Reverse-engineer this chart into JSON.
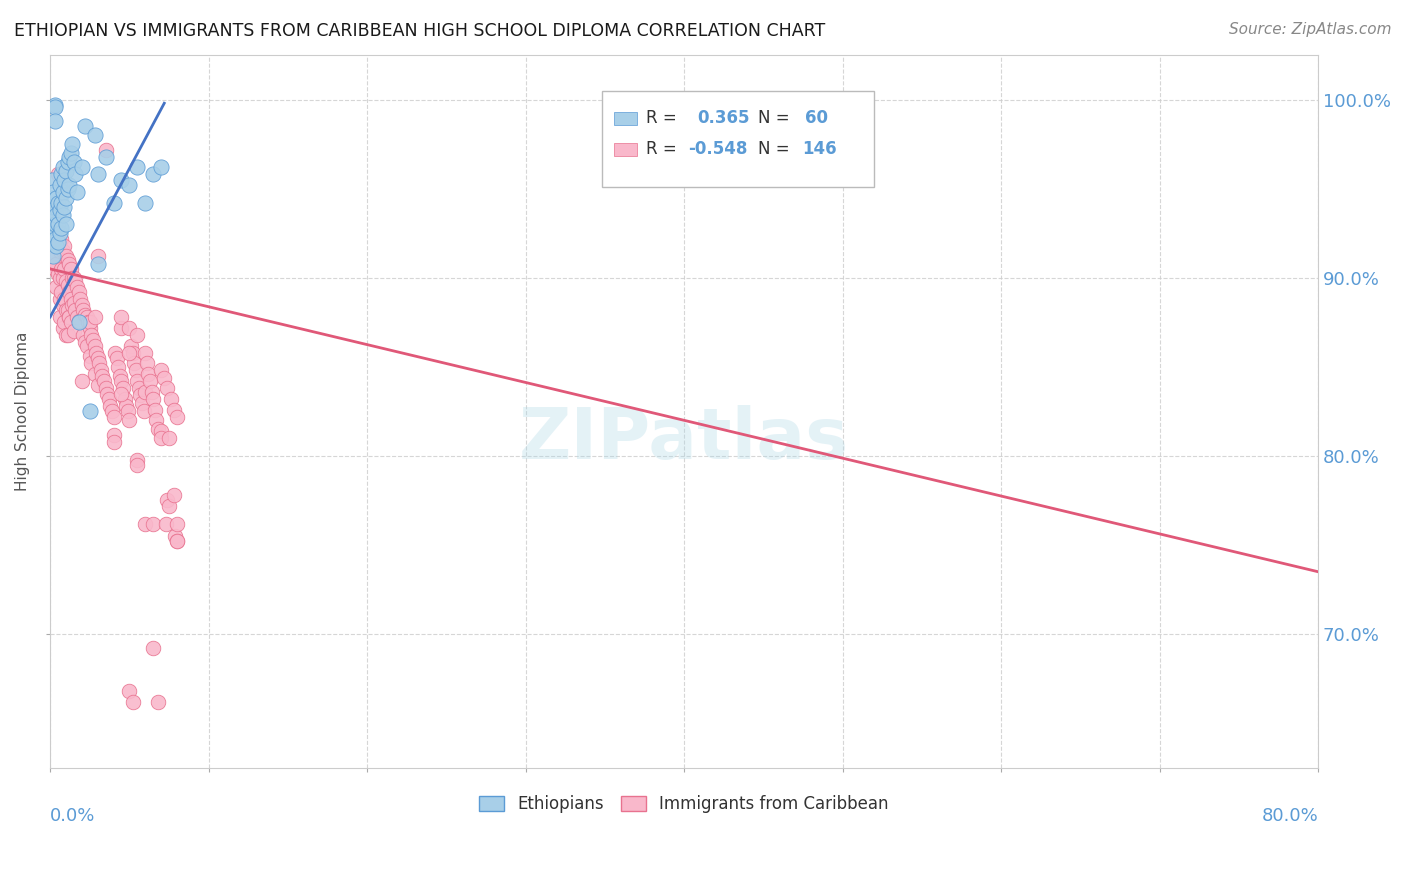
{
  "title": "ETHIOPIAN VS IMMIGRANTS FROM CARIBBEAN HIGH SCHOOL DIPLOMA CORRELATION CHART",
  "source": "Source: ZipAtlas.com",
  "ylabel": "High School Diploma",
  "right_ytick_labels": [
    "100.0%",
    "90.0%",
    "80.0%",
    "70.0%"
  ],
  "right_ytick_values": [
    1.0,
    0.9,
    0.8,
    0.7
  ],
  "blue_color": "#a8cfe8",
  "pink_color": "#f9b8cb",
  "blue_edge_color": "#5b9bd5",
  "pink_edge_color": "#e8728f",
  "blue_line_color": "#4472c4",
  "pink_line_color": "#e05878",
  "title_color": "#1a1a1a",
  "axis_label_color": "#5b9bd5",
  "grid_color": "#cccccc",
  "background_color": "#ffffff",
  "xlim": [
    0.0,
    0.8
  ],
  "ylim": [
    0.625,
    1.025
  ],
  "blue_scatter": [
    [
      0.001,
      0.93
    ],
    [
      0.001,
      0.938
    ],
    [
      0.001,
      0.945
    ],
    [
      0.001,
      0.955
    ],
    [
      0.002,
      0.925
    ],
    [
      0.002,
      0.933
    ],
    [
      0.002,
      0.94
    ],
    [
      0.002,
      0.948
    ],
    [
      0.002,
      0.92
    ],
    [
      0.002,
      0.912
    ],
    [
      0.003,
      0.93
    ],
    [
      0.003,
      0.94
    ],
    [
      0.003,
      0.997
    ],
    [
      0.003,
      0.996
    ],
    [
      0.003,
      0.988
    ],
    [
      0.003,
      0.922
    ],
    [
      0.004,
      0.935
    ],
    [
      0.004,
      0.945
    ],
    [
      0.004,
      0.918
    ],
    [
      0.005,
      0.942
    ],
    [
      0.005,
      0.93
    ],
    [
      0.005,
      0.92
    ],
    [
      0.006,
      0.952
    ],
    [
      0.006,
      0.938
    ],
    [
      0.006,
      0.925
    ],
    [
      0.007,
      0.958
    ],
    [
      0.007,
      0.942
    ],
    [
      0.007,
      0.928
    ],
    [
      0.008,
      0.962
    ],
    [
      0.008,
      0.948
    ],
    [
      0.008,
      0.935
    ],
    [
      0.009,
      0.955
    ],
    [
      0.009,
      0.94
    ],
    [
      0.01,
      0.96
    ],
    [
      0.01,
      0.945
    ],
    [
      0.01,
      0.93
    ],
    [
      0.011,
      0.965
    ],
    [
      0.011,
      0.95
    ],
    [
      0.012,
      0.968
    ],
    [
      0.012,
      0.952
    ],
    [
      0.013,
      0.97
    ],
    [
      0.014,
      0.975
    ],
    [
      0.015,
      0.965
    ],
    [
      0.016,
      0.958
    ],
    [
      0.017,
      0.948
    ],
    [
      0.018,
      0.875
    ],
    [
      0.02,
      0.962
    ],
    [
      0.022,
      0.985
    ],
    [
      0.025,
      0.825
    ],
    [
      0.028,
      0.98
    ],
    [
      0.03,
      0.958
    ],
    [
      0.03,
      0.908
    ],
    [
      0.035,
      0.968
    ],
    [
      0.04,
      0.942
    ],
    [
      0.045,
      0.955
    ],
    [
      0.05,
      0.952
    ],
    [
      0.055,
      0.962
    ],
    [
      0.06,
      0.942
    ],
    [
      0.065,
      0.958
    ],
    [
      0.07,
      0.962
    ]
  ],
  "pink_scatter": [
    [
      0.002,
      0.912
    ],
    [
      0.003,
      0.918
    ],
    [
      0.003,
      0.905
    ],
    [
      0.004,
      0.922
    ],
    [
      0.004,
      0.908
    ],
    [
      0.004,
      0.895
    ],
    [
      0.005,
      0.958
    ],
    [
      0.005,
      0.918
    ],
    [
      0.005,
      0.902
    ],
    [
      0.006,
      0.915
    ],
    [
      0.006,
      0.9
    ],
    [
      0.006,
      0.888
    ],
    [
      0.006,
      0.878
    ],
    [
      0.007,
      0.922
    ],
    [
      0.007,
      0.905
    ],
    [
      0.007,
      0.892
    ],
    [
      0.008,
      0.915
    ],
    [
      0.008,
      0.9
    ],
    [
      0.008,
      0.885
    ],
    [
      0.008,
      0.872
    ],
    [
      0.009,
      0.918
    ],
    [
      0.009,
      0.905
    ],
    [
      0.009,
      0.888
    ],
    [
      0.009,
      0.875
    ],
    [
      0.01,
      0.912
    ],
    [
      0.01,
      0.898
    ],
    [
      0.01,
      0.882
    ],
    [
      0.01,
      0.868
    ],
    [
      0.011,
      0.91
    ],
    [
      0.011,
      0.896
    ],
    [
      0.011,
      0.882
    ],
    [
      0.011,
      0.868
    ],
    [
      0.012,
      0.908
    ],
    [
      0.012,
      0.892
    ],
    [
      0.012,
      0.878
    ],
    [
      0.012,
      0.878
    ],
    [
      0.013,
      0.905
    ],
    [
      0.013,
      0.888
    ],
    [
      0.013,
      0.875
    ],
    [
      0.014,
      0.9
    ],
    [
      0.014,
      0.885
    ],
    [
      0.015,
      0.9
    ],
    [
      0.015,
      0.886
    ],
    [
      0.015,
      0.87
    ],
    [
      0.016,
      0.898
    ],
    [
      0.016,
      0.882
    ],
    [
      0.017,
      0.895
    ],
    [
      0.017,
      0.878
    ],
    [
      0.018,
      0.892
    ],
    [
      0.018,
      0.876
    ],
    [
      0.019,
      0.888
    ],
    [
      0.02,
      0.885
    ],
    [
      0.02,
      0.842
    ],
    [
      0.021,
      0.882
    ],
    [
      0.021,
      0.868
    ],
    [
      0.022,
      0.879
    ],
    [
      0.022,
      0.864
    ],
    [
      0.023,
      0.878
    ],
    [
      0.023,
      0.862
    ],
    [
      0.024,
      0.875
    ],
    [
      0.025,
      0.872
    ],
    [
      0.025,
      0.856
    ],
    [
      0.025,
      0.875
    ],
    [
      0.026,
      0.868
    ],
    [
      0.026,
      0.852
    ],
    [
      0.027,
      0.865
    ],
    [
      0.028,
      0.862
    ],
    [
      0.028,
      0.846
    ],
    [
      0.028,
      0.878
    ],
    [
      0.029,
      0.858
    ],
    [
      0.03,
      0.855
    ],
    [
      0.03,
      0.84
    ],
    [
      0.03,
      0.912
    ],
    [
      0.031,
      0.852
    ],
    [
      0.032,
      0.848
    ],
    [
      0.033,
      0.845
    ],
    [
      0.034,
      0.842
    ],
    [
      0.035,
      0.838
    ],
    [
      0.035,
      0.972
    ],
    [
      0.036,
      0.835
    ],
    [
      0.037,
      0.832
    ],
    [
      0.038,
      0.828
    ],
    [
      0.039,
      0.825
    ],
    [
      0.04,
      0.822
    ],
    [
      0.04,
      0.812
    ],
    [
      0.041,
      0.858
    ],
    [
      0.042,
      0.855
    ],
    [
      0.043,
      0.85
    ],
    [
      0.044,
      0.845
    ],
    [
      0.045,
      0.842
    ],
    [
      0.045,
      0.872
    ],
    [
      0.045,
      0.878
    ],
    [
      0.046,
      0.838
    ],
    [
      0.047,
      0.832
    ],
    [
      0.048,
      0.828
    ],
    [
      0.049,
      0.825
    ],
    [
      0.05,
      0.82
    ],
    [
      0.05,
      0.872
    ],
    [
      0.05,
      0.668
    ],
    [
      0.051,
      0.862
    ],
    [
      0.052,
      0.858
    ],
    [
      0.052,
      0.662
    ],
    [
      0.053,
      0.852
    ],
    [
      0.054,
      0.848
    ],
    [
      0.055,
      0.842
    ],
    [
      0.055,
      0.868
    ],
    [
      0.055,
      0.798
    ],
    [
      0.056,
      0.838
    ],
    [
      0.057,
      0.834
    ],
    [
      0.058,
      0.83
    ],
    [
      0.059,
      0.825
    ],
    [
      0.06,
      0.858
    ],
    [
      0.06,
      0.836
    ],
    [
      0.06,
      0.762
    ],
    [
      0.061,
      0.852
    ],
    [
      0.062,
      0.846
    ],
    [
      0.063,
      0.842
    ],
    [
      0.064,
      0.836
    ],
    [
      0.065,
      0.832
    ],
    [
      0.065,
      0.762
    ],
    [
      0.065,
      0.692
    ],
    [
      0.066,
      0.826
    ],
    [
      0.067,
      0.82
    ],
    [
      0.068,
      0.815
    ],
    [
      0.068,
      0.662
    ],
    [
      0.07,
      0.848
    ],
    [
      0.07,
      0.814
    ],
    [
      0.07,
      0.81
    ],
    [
      0.072,
      0.844
    ],
    [
      0.073,
      0.762
    ],
    [
      0.074,
      0.838
    ],
    [
      0.074,
      0.775
    ],
    [
      0.075,
      0.81
    ],
    [
      0.075,
      0.772
    ],
    [
      0.076,
      0.832
    ],
    [
      0.078,
      0.826
    ],
    [
      0.078,
      0.778
    ],
    [
      0.079,
      0.755
    ],
    [
      0.08,
      0.822
    ],
    [
      0.08,
      0.752
    ],
    [
      0.08,
      0.762
    ],
    [
      0.08,
      0.752
    ],
    [
      0.04,
      0.808
    ],
    [
      0.045,
      0.835
    ],
    [
      0.05,
      0.858
    ],
    [
      0.055,
      0.795
    ]
  ]
}
